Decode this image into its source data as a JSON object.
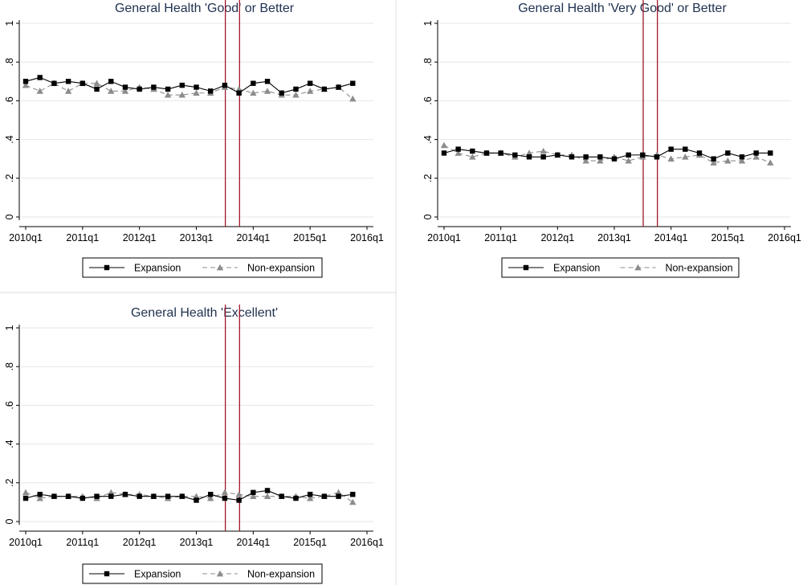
{
  "colors": {
    "expansion": "#000000",
    "non_expansion": "#8c8c8c",
    "policy_line": "#a3162b",
    "grid": "#e6e6e6",
    "title": "#1f3150"
  },
  "chart_data": [
    {
      "type": "line",
      "title": "General Health 'Good' or Better",
      "xlabel": "",
      "ylabel": "",
      "x": [
        0,
        1,
        2,
        3,
        4,
        5,
        6,
        7,
        8,
        9,
        10,
        11,
        12,
        13,
        14,
        15,
        16,
        17,
        18,
        19,
        20,
        21,
        22,
        23
      ],
      "xlim": [
        0,
        24
      ],
      "ylim": [
        0,
        1
      ],
      "yticks": [
        0,
        0.2,
        0.4,
        0.6,
        0.8,
        1
      ],
      "ytick_labels": [
        "0",
        ".2",
        ".4",
        ".6",
        ".8",
        "1"
      ],
      "xticks": [
        0,
        4,
        8,
        12,
        16,
        20,
        24
      ],
      "xtick_labels": [
        "2010q1",
        "2011q1",
        "2012q1",
        "2013q1",
        "2014q1",
        "2015q1",
        "2016q1"
      ],
      "vlines": [
        15,
        16
      ],
      "grid": true,
      "legend_position": "bottom",
      "series": [
        {
          "name": "Expansion",
          "marker": "square",
          "values": [
            0.7,
            0.72,
            0.69,
            0.7,
            0.69,
            0.66,
            0.7,
            0.67,
            0.66,
            0.67,
            0.66,
            0.68,
            0.67,
            0.65,
            0.68,
            0.64,
            0.69,
            0.7,
            0.64,
            0.66,
            0.69,
            0.66,
            0.67,
            0.69
          ]
        },
        {
          "name": "Non-expansion",
          "marker": "triangle",
          "values": [
            0.68,
            0.65,
            0.69,
            0.65,
            0.69,
            0.69,
            0.65,
            0.65,
            0.67,
            0.66,
            0.63,
            0.63,
            0.64,
            0.64,
            0.67,
            0.66,
            0.64,
            0.65,
            0.63,
            0.63,
            0.65,
            0.66,
            0.67,
            0.61
          ]
        }
      ]
    },
    {
      "type": "line",
      "title": "General Health 'Very Good' or Better",
      "xlabel": "",
      "ylabel": "",
      "x": [
        0,
        1,
        2,
        3,
        4,
        5,
        6,
        7,
        8,
        9,
        10,
        11,
        12,
        13,
        14,
        15,
        16,
        17,
        18,
        19,
        20,
        21,
        22,
        23
      ],
      "xlim": [
        0,
        24
      ],
      "ylim": [
        0,
        1
      ],
      "yticks": [
        0,
        0.2,
        0.4,
        0.6,
        0.8,
        1
      ],
      "ytick_labels": [
        "0",
        ".2",
        ".4",
        ".6",
        ".8",
        "1"
      ],
      "xticks": [
        0,
        4,
        8,
        12,
        16,
        20,
        24
      ],
      "xtick_labels": [
        "2010q1",
        "2011q1",
        "2012q1",
        "2013q1",
        "2014q1",
        "2015q1",
        "2016q1"
      ],
      "vlines": [
        15,
        16
      ],
      "grid": true,
      "legend_position": "bottom",
      "series": [
        {
          "name": "Expansion",
          "marker": "square",
          "values": [
            0.33,
            0.35,
            0.34,
            0.33,
            0.33,
            0.32,
            0.31,
            0.31,
            0.32,
            0.31,
            0.31,
            0.31,
            0.3,
            0.32,
            0.32,
            0.31,
            0.35,
            0.35,
            0.33,
            0.3,
            0.33,
            0.31,
            0.33,
            0.33
          ]
        },
        {
          "name": "Non-expansion",
          "marker": "triangle",
          "values": [
            0.37,
            0.33,
            0.31,
            0.33,
            0.33,
            0.31,
            0.33,
            0.34,
            0.32,
            0.32,
            0.29,
            0.29,
            0.31,
            0.29,
            0.31,
            0.32,
            0.3,
            0.31,
            0.32,
            0.28,
            0.29,
            0.29,
            0.31,
            0.28
          ]
        }
      ]
    },
    {
      "type": "line",
      "title": "General Health 'Excellent'",
      "xlabel": "",
      "ylabel": "",
      "x": [
        0,
        1,
        2,
        3,
        4,
        5,
        6,
        7,
        8,
        9,
        10,
        11,
        12,
        13,
        14,
        15,
        16,
        17,
        18,
        19,
        20,
        21,
        22,
        23
      ],
      "xlim": [
        0,
        24
      ],
      "ylim": [
        0,
        1
      ],
      "yticks": [
        0,
        0.2,
        0.4,
        0.6,
        0.8,
        1
      ],
      "ytick_labels": [
        "0",
        ".2",
        ".4",
        ".6",
        ".8",
        "1"
      ],
      "xticks": [
        0,
        4,
        8,
        12,
        16,
        20,
        24
      ],
      "xtick_labels": [
        "2010q1",
        "2011q1",
        "2012q1",
        "2013q1",
        "2014q1",
        "2015q1",
        "2016q1"
      ],
      "vlines": [
        15,
        16
      ],
      "grid": true,
      "legend_position": "bottom",
      "series": [
        {
          "name": "Expansion",
          "marker": "square",
          "values": [
            0.12,
            0.14,
            0.13,
            0.13,
            0.12,
            0.13,
            0.13,
            0.14,
            0.13,
            0.13,
            0.13,
            0.13,
            0.11,
            0.14,
            0.12,
            0.11,
            0.15,
            0.16,
            0.13,
            0.12,
            0.14,
            0.13,
            0.13,
            0.14
          ]
        },
        {
          "name": "Non-expansion",
          "marker": "triangle",
          "values": [
            0.15,
            0.12,
            0.13,
            0.13,
            0.13,
            0.12,
            0.15,
            0.14,
            0.14,
            0.13,
            0.12,
            0.13,
            0.13,
            0.12,
            0.15,
            0.14,
            0.13,
            0.13,
            0.13,
            0.13,
            0.12,
            0.13,
            0.15,
            0.1
          ]
        }
      ]
    }
  ]
}
